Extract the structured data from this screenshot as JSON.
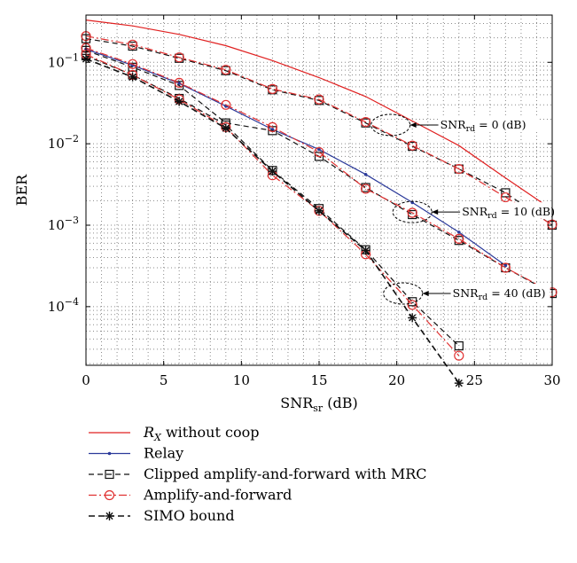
{
  "chart_data": {
    "type": "line",
    "xlabel": {
      "main": "SNR",
      "sub": "sr",
      "unit": " (dB)"
    },
    "ylabel": "BER",
    "xlim": [
      0,
      30
    ],
    "ylim_log10": [
      -4.72,
      -0.42
    ],
    "yscale": "log",
    "grid": true,
    "legend_position": "below",
    "x_ticks": [
      "0",
      "5",
      "10",
      "15",
      "20",
      "25",
      "30"
    ],
    "y_ticks": [
      {
        "value": 0.1,
        "base": "10",
        "exp": "−1"
      },
      {
        "value": 0.01,
        "base": "10",
        "exp": "−2"
      },
      {
        "value": 0.001,
        "base": "10",
        "exp": "−3"
      },
      {
        "value": 0.0001,
        "base": "10",
        "exp": "−4"
      }
    ],
    "series": [
      {
        "name": "R_X without coop",
        "color": "#e02020",
        "dash": "",
        "marker": "none",
        "x": [
          0,
          3,
          6,
          9,
          12,
          15,
          18,
          21,
          24,
          27,
          30
        ],
        "y": [
          0.33,
          0.28,
          0.22,
          0.16,
          0.105,
          0.065,
          0.038,
          0.019,
          0.0095,
          0.0038,
          0.00155
        ]
      },
      {
        "name": "Relay",
        "color": "#2b3a9a",
        "dash": "",
        "marker": "dot",
        "x": [
          0,
          3,
          6,
          9,
          12,
          15,
          18,
          21,
          24,
          27
        ],
        "y": [
          0.145,
          0.092,
          0.055,
          0.029,
          0.015,
          0.0085,
          0.0042,
          0.0019,
          0.00082,
          0.00032
        ]
      },
      {
        "name": "Clipped amplify-and-forward with MRC",
        "color": "#111111",
        "dash": "6,4",
        "marker": "square",
        "x": [
          0,
          3,
          6,
          9,
          12,
          15,
          18,
          21,
          24,
          27,
          30
        ],
        "y": [
          0.195,
          0.158,
          0.112,
          0.079,
          0.046,
          0.034,
          0.018,
          0.0093,
          0.0049,
          0.0025,
          0.001
        ]
      },
      {
        "name": "Amplify-and-forward",
        "color": "#e03030",
        "dash": "9,3,2,3",
        "marker": "circle",
        "x": [
          0,
          3,
          6,
          9,
          12,
          15,
          18,
          21,
          24,
          27,
          30
        ],
        "y": [
          0.21,
          0.165,
          0.115,
          0.081,
          0.047,
          0.035,
          0.0185,
          0.0095,
          0.0049,
          0.0022,
          0.00102
        ]
      },
      {
        "name": "Clipped amplify-and-forward with MRC",
        "color": "#111111",
        "dash": "6,4",
        "marker": "square",
        "x": [
          0,
          3,
          6,
          9,
          12,
          15,
          18,
          21,
          24,
          27,
          30
        ],
        "y": [
          0.14,
          0.087,
          0.052,
          0.018,
          0.0145,
          0.007,
          0.0029,
          0.00135,
          0.00065,
          0.0003,
          0.000145
        ]
      },
      {
        "name": "Amplify-and-forward",
        "color": "#e03030",
        "dash": "9,3,2,3",
        "marker": "circle",
        "x": [
          0,
          3,
          6,
          9,
          12,
          15,
          18,
          21,
          24,
          27,
          30
        ],
        "y": [
          0.15,
          0.095,
          0.056,
          0.03,
          0.016,
          0.0079,
          0.0028,
          0.00142,
          0.00068,
          0.0003,
          0.00015
        ]
      },
      {
        "name": "Clipped amplify-and-forward with MRC",
        "color": "#111111",
        "dash": "6,4",
        "marker": "square",
        "x": [
          0,
          3,
          6,
          9,
          12,
          15,
          18,
          21,
          24
        ],
        "y": [
          0.12,
          0.07,
          0.036,
          0.017,
          0.0047,
          0.0016,
          0.0005,
          0.000115,
          3.3e-05
        ]
      },
      {
        "name": "Amplify-and-forward",
        "color": "#e03030",
        "dash": "9,3,2,3",
        "marker": "circle",
        "x": [
          0,
          3,
          6,
          9,
          12,
          15,
          18,
          21,
          24
        ],
        "y": [
          0.125,
          0.07,
          0.035,
          0.016,
          0.0041,
          0.0015,
          0.00044,
          0.000105,
          2.5e-05
        ]
      },
      {
        "name": "SIMO bound",
        "color": "#111111",
        "dash": "7,4",
        "marker": "star",
        "x": [
          0,
          3,
          6,
          9,
          12,
          15,
          18,
          21,
          24
        ],
        "y": [
          0.11,
          0.066,
          0.033,
          0.0155,
          0.0046,
          0.0015,
          0.00049,
          7.3e-05,
          1.15e-05
        ]
      }
    ],
    "annotations": [
      {
        "label_main": "SNR",
        "label_sub": "rd",
        "label_rest": " = 0 (dB)",
        "x": 19.6,
        "y": 0.017
      },
      {
        "label_main": "SNR",
        "label_sub": "rd",
        "label_rest": " = 10 (dB)",
        "x": 21.0,
        "y": 0.00145
      },
      {
        "label_main": "SNR",
        "label_sub": "rd",
        "label_rest": " = 40 (dB)",
        "x": 20.4,
        "y": 0.000145
      }
    ],
    "legend": [
      {
        "label_main": "R",
        "label_sub": "X",
        "label_rest": " without coop",
        "color": "#e02020",
        "dash": "",
        "marker": "none"
      },
      {
        "label": "Relay",
        "color": "#2b3a9a",
        "dash": "",
        "marker": "dot"
      },
      {
        "label": "Clipped amplify-and-forward with MRC",
        "color": "#111111",
        "dash": "6,4",
        "marker": "square"
      },
      {
        "label": "Amplify-and-forward",
        "color": "#e03030",
        "dash": "9,3,2,3",
        "marker": "circle"
      },
      {
        "label": "SIMO bound",
        "color": "#111111",
        "dash": "7,4",
        "marker": "star"
      }
    ]
  }
}
